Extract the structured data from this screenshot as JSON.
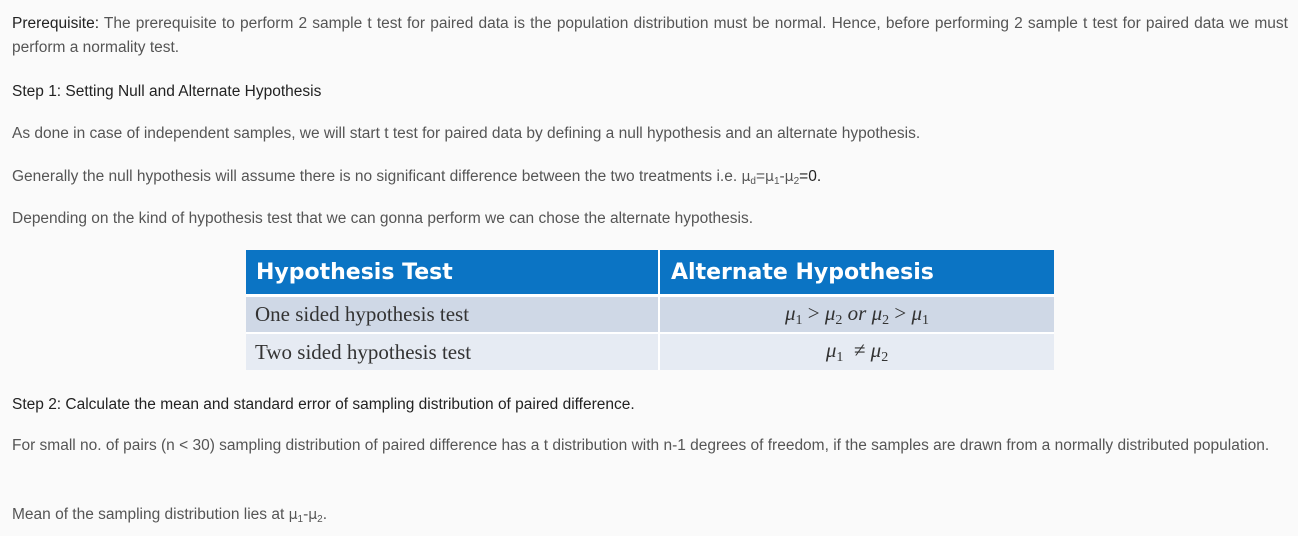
{
  "prerequisite": {
    "label": "Prerequisite:",
    "text": " The prerequisite to perform 2 sample t test for paired data is the population distribution must be normal. Hence, before performing 2 sample t test for paired data we must perform a normality test."
  },
  "step1": {
    "heading": "Step 1: Setting Null and Alternate Hypothesis",
    "para1": "As done in case of independent samples, we will start t test for paired data by defining a  null hypothesis and an alternate hypothesis.",
    "para2_prefix": "Generally the null hypothesis will assume there is no significant difference between the two treatments i.e. ",
    "para2_formula": {
      "mu": "μ",
      "sub_d": "d",
      "eq": "=",
      "sub_1": "1",
      "minus": "-",
      "sub_2": "2",
      "tail": "=0."
    },
    "para3": "Depending on the kind of hypothesis test that we can gonna perform we can chose the alternate hypothesis."
  },
  "table": {
    "headers": [
      "Hypothesis Test",
      "Alternate Hypothesis"
    ],
    "rows": [
      {
        "test": "One sided hypothesis test",
        "alt": {
          "a": "μ",
          "a_sub": "1",
          "op1": " > ",
          "b": "μ",
          "b_sub": "2",
          "or": " or ",
          "c": "μ",
          "c_sub": "2",
          "op2": " > ",
          "d": "μ",
          "d_sub": "1"
        }
      },
      {
        "test": "Two sided hypothesis test",
        "alt": {
          "a": "μ",
          "a_sub": "1",
          "op": "  ≠ ",
          "b": "μ",
          "b_sub": "2"
        }
      }
    ],
    "colors": {
      "header_bg": "#0b74c4",
      "row1_bg": "#cfd8e6",
      "row2_bg": "#e6ebf3"
    }
  },
  "step2": {
    "heading": "Step 2: Calculate the mean and standard error of sampling distribution of paired difference.",
    "para1": "For small no. of pairs (n < 30) sampling distribution of paired difference has a t distribution with n-1 degrees of freedom, if the samples are drawn from a normally distributed population.",
    "para2_prefix": "Mean of the sampling distribution lies at ",
    "para2_formula": {
      "mu": "μ",
      "sub_1": "1",
      "minus": "-",
      "sub_2": "2"
    },
    "para2_suffix": "."
  }
}
